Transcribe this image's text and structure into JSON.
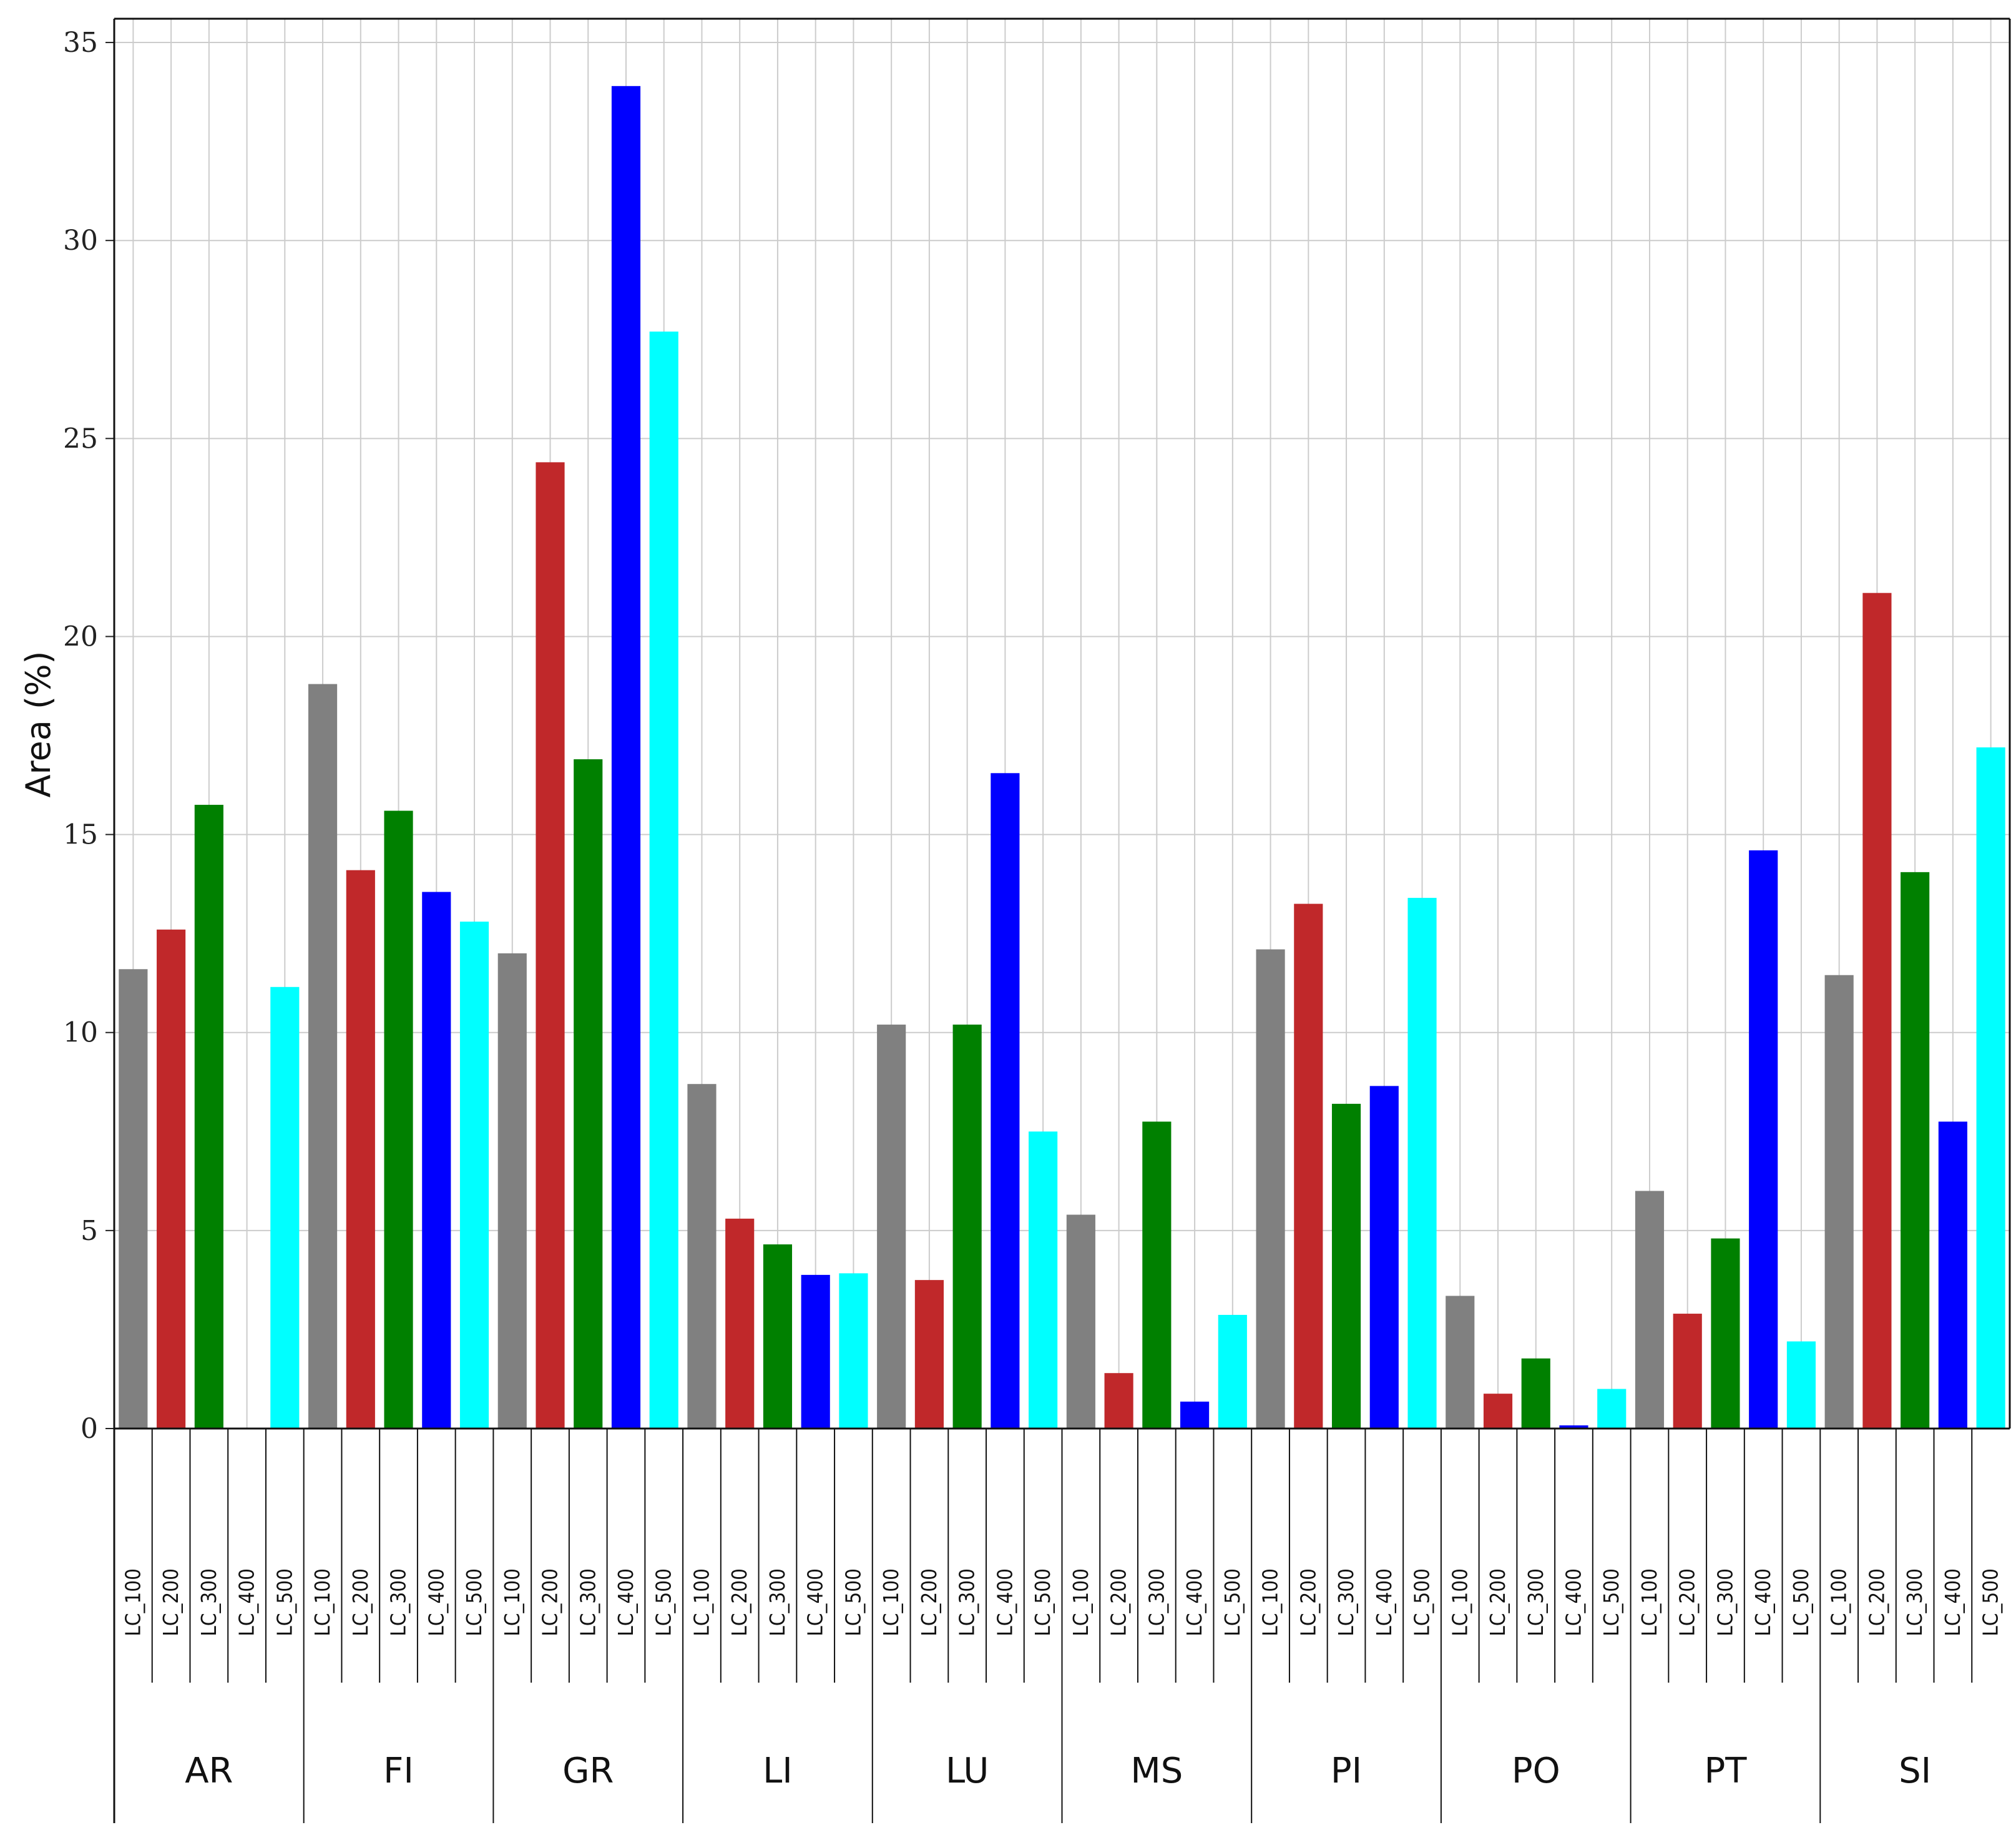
{
  "chart_data": {
    "type": "bar",
    "ylabel": "Area (%)",
    "xlabel": "",
    "title": "",
    "ylim": [
      0,
      35.6
    ],
    "yticks": [
      0,
      5,
      10,
      15,
      20,
      25,
      30,
      35
    ],
    "grid": true,
    "legend": "none",
    "groups": [
      "AR",
      "FI",
      "GR",
      "LI",
      "LU",
      "MS",
      "PI",
      "PO",
      "PT",
      "SI"
    ],
    "series": [
      {
        "name": "LC_100",
        "color": "#808080",
        "values": [
          11.6,
          18.8,
          12.0,
          8.7,
          10.2,
          5.4,
          12.1,
          3.35,
          6.0,
          11.45
        ]
      },
      {
        "name": "LC_200",
        "color": "#c0282a",
        "values": [
          12.6,
          14.1,
          24.4,
          5.3,
          3.75,
          1.4,
          13.25,
          0.88,
          2.9,
          21.1
        ]
      },
      {
        "name": "LC_300",
        "color": "#008000",
        "values": [
          15.75,
          15.6,
          16.9,
          4.65,
          10.2,
          7.75,
          8.2,
          1.77,
          4.8,
          14.05
        ]
      },
      {
        "name": "LC_400",
        "color": "#0000ff",
        "values": [
          0,
          13.55,
          33.9,
          3.88,
          16.55,
          0.68,
          8.65,
          0.08,
          14.6,
          7.75
        ]
      },
      {
        "name": "LC_500",
        "color": "#00ffff",
        "values": [
          11.15,
          12.8,
          27.7,
          3.92,
          7.5,
          2.87,
          13.4,
          1.0,
          2.2,
          17.2
        ]
      }
    ],
    "sub_labels": [
      "LC_100",
      "LC_200",
      "LC_300",
      "LC_400",
      "LC_500"
    ]
  }
}
